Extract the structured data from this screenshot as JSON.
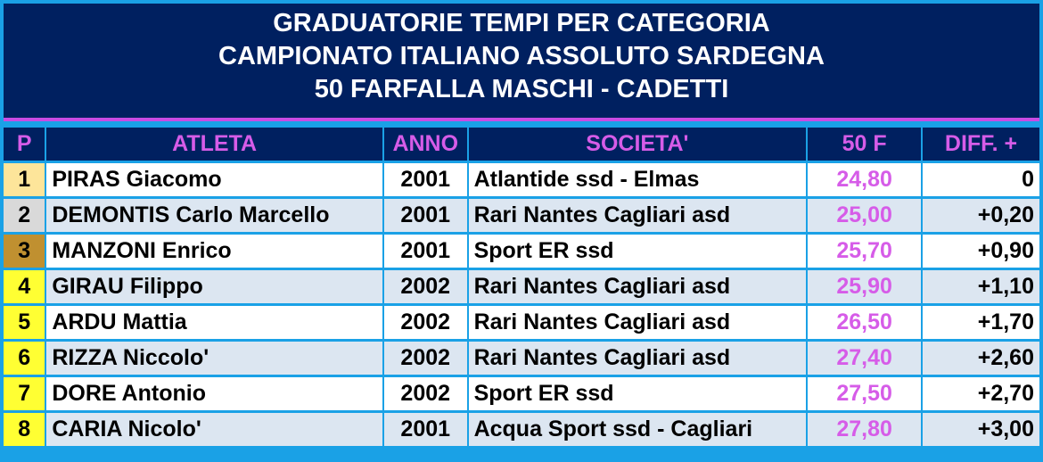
{
  "header": {
    "line1": "GRADUATORIE TEMPI PER CATEGORIA",
    "line2": "CAMPIONATO ITALIANO ASSOLUTO SARDEGNA",
    "line3": "50 FARFALLA MASCHI - CADETTI"
  },
  "columns": {
    "pos": "P",
    "athlete": "ATLETA",
    "year": "ANNO",
    "club": "SOCIETA'",
    "time": "50 F",
    "diff": "DIFF. +"
  },
  "colors": {
    "gold": "#fde59a",
    "silver": "#d9d9d9",
    "bronze": "#c09030",
    "other": "#ffff33",
    "accent": "#d65ce8",
    "header_bg": "#002060"
  },
  "rows": [
    {
      "pos": "1",
      "athlete": "PIRAS Giacomo",
      "year": "2001",
      "club": "Atlantide ssd - Elmas",
      "time": "24,80",
      "diff": "0",
      "medal": "gold"
    },
    {
      "pos": "2",
      "athlete": "DEMONTIS Carlo Marcello",
      "year": "2001",
      "club": "Rari Nantes Cagliari asd",
      "time": "25,00",
      "diff": "+0,20",
      "medal": "silver"
    },
    {
      "pos": "3",
      "athlete": "MANZONI Enrico",
      "year": "2001",
      "club": "Sport ER ssd",
      "time": "25,70",
      "diff": "+0,90",
      "medal": "bronze"
    },
    {
      "pos": "4",
      "athlete": "GIRAU Filippo",
      "year": "2002",
      "club": "Rari Nantes Cagliari asd",
      "time": "25,90",
      "diff": "+1,10",
      "medal": "other"
    },
    {
      "pos": "5",
      "athlete": "ARDU Mattia",
      "year": "2002",
      "club": "Rari Nantes Cagliari asd",
      "time": "26,50",
      "diff": "+1,70",
      "medal": "other"
    },
    {
      "pos": "6",
      "athlete": "RIZZA Niccolo'",
      "year": "2002",
      "club": "Rari Nantes Cagliari asd",
      "time": "27,40",
      "diff": "+2,60",
      "medal": "other"
    },
    {
      "pos": "7",
      "athlete": "DORE Antonio",
      "year": "2002",
      "club": "Sport ER ssd",
      "time": "27,50",
      "diff": "+2,70",
      "medal": "other"
    },
    {
      "pos": "8",
      "athlete": "CARIA Nicolo'",
      "year": "2001",
      "club": "Acqua Sport ssd - Cagliari",
      "time": "27,80",
      "diff": "+3,00",
      "medal": "other"
    }
  ]
}
